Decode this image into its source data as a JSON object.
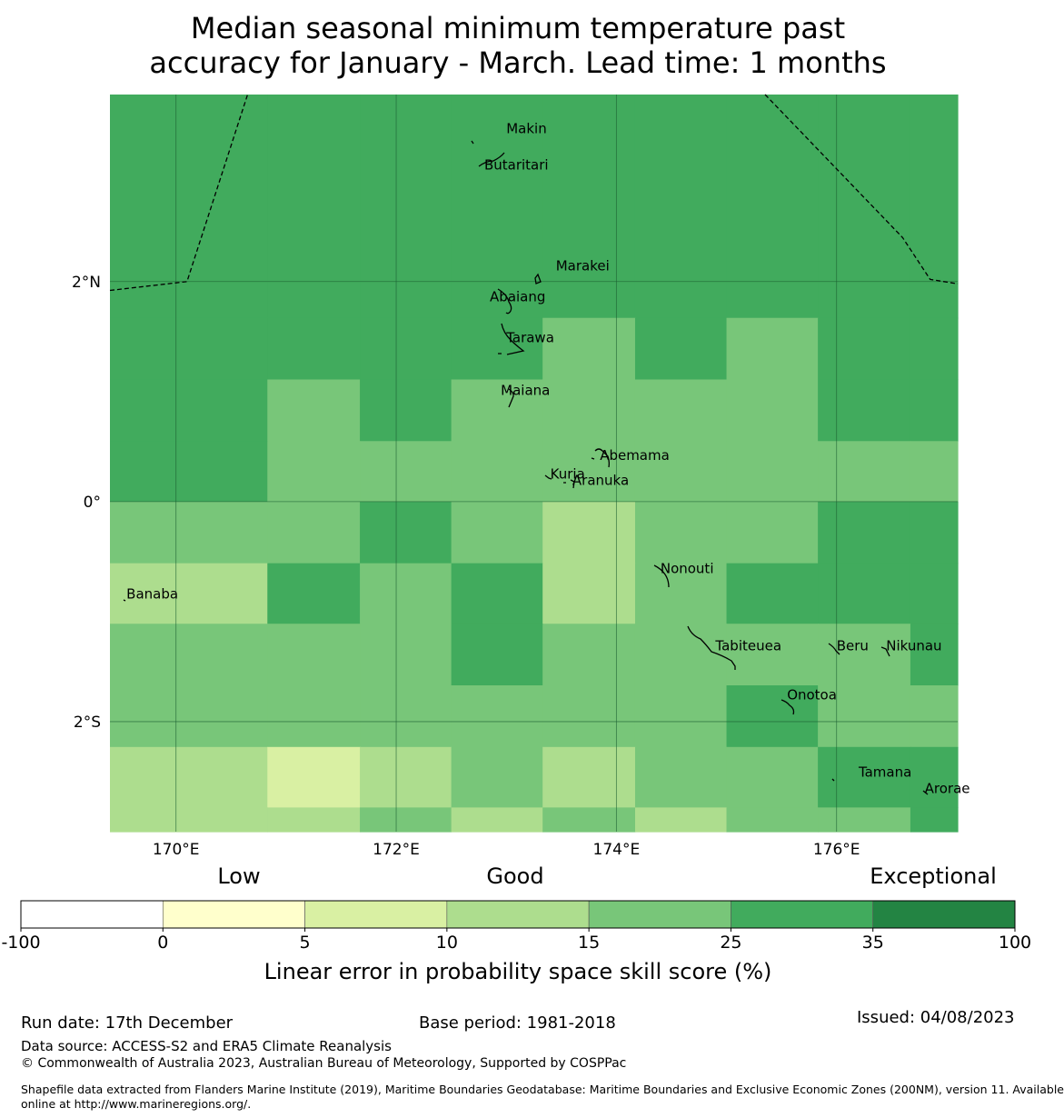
{
  "title": {
    "line1": "Median seasonal minimum temperature past",
    "line2": "accuracy for January - March. Lead time: 1 months"
  },
  "map": {
    "lon_range": [
      169.4,
      177.1
    ],
    "lat_range": [
      -3.0,
      3.7
    ],
    "lon_ticks": [
      {
        "value": 170,
        "label": "170°E"
      },
      {
        "value": 172,
        "label": "172°E"
      },
      {
        "value": 174,
        "label": "174°E"
      },
      {
        "value": 176,
        "label": "176°E"
      }
    ],
    "lat_ticks": [
      {
        "value": 2,
        "label": "2°N"
      },
      {
        "value": 0,
        "label": "0°"
      },
      {
        "value": -2,
        "label": "2°S"
      }
    ],
    "grid_lon_edges": [
      169.4,
      170.83,
      171.67,
      172.5,
      173.33,
      174.17,
      175.0,
      175.83,
      176.67,
      177.1
    ],
    "grid_lat_edges": [
      3.7,
      1.67,
      1.11,
      0.55,
      0.0,
      -0.56,
      -1.11,
      -1.67,
      -2.23,
      -2.78,
      -3.0
    ],
    "skill_cells": [
      [
        4,
        4,
        4,
        4,
        4,
        4,
        4,
        4,
        4
      ],
      [
        4,
        4,
        4,
        4,
        3,
        4,
        3,
        4,
        4
      ],
      [
        4,
        3,
        4,
        3,
        3,
        3,
        3,
        4,
        4
      ],
      [
        4,
        3,
        3,
        3,
        3,
        3,
        3,
        3,
        3
      ],
      [
        3,
        3,
        4,
        3,
        2,
        3,
        3,
        4,
        4
      ],
      [
        2,
        4,
        3,
        4,
        2,
        3,
        4,
        4,
        4
      ],
      [
        3,
        3,
        3,
        4,
        3,
        3,
        3,
        3,
        4
      ],
      [
        3,
        3,
        3,
        3,
        3,
        3,
        4,
        3,
        3
      ],
      [
        2,
        1,
        2,
        3,
        2,
        3,
        3,
        4,
        4
      ],
      [
        2,
        2,
        3,
        2,
        3,
        2,
        3,
        3,
        4
      ]
    ],
    "cell_colors": [
      "#ffffcc",
      "#d9f0a3",
      "#addd8e",
      "#78c679",
      "#41ab5d",
      "#238443"
    ],
    "eez_boundaries": [
      [
        [
          169.4,
          1.92
        ],
        [
          170.1,
          2.0
        ],
        [
          170.65,
          3.7
        ]
      ],
      [
        [
          175.35,
          3.7
        ],
        [
          176.6,
          2.4
        ],
        [
          176.85,
          2.02
        ],
        [
          177.1,
          1.98
        ]
      ]
    ],
    "islands": [
      {
        "name": "Makin",
        "lon": 173.0,
        "lat": 3.35
      },
      {
        "name": "Butaritari",
        "lon": 172.8,
        "lat": 3.02
      },
      {
        "name": "Marakei",
        "lon": 173.45,
        "lat": 2.1
      },
      {
        "name": "Abaiang",
        "lon": 172.85,
        "lat": 1.82
      },
      {
        "name": "Tarawa",
        "lon": 173.0,
        "lat": 1.45
      },
      {
        "name": "Maiana",
        "lon": 172.95,
        "lat": 0.97
      },
      {
        "name": "Abemama",
        "lon": 173.85,
        "lat": 0.38
      },
      {
        "name": "Kuria",
        "lon": 173.4,
        "lat": 0.21
      },
      {
        "name": "Aranuka",
        "lon": 173.6,
        "lat": 0.15
      },
      {
        "name": "Nonouti",
        "lon": 174.4,
        "lat": -0.65
      },
      {
        "name": "Banaba",
        "lon": 169.55,
        "lat": -0.88
      },
      {
        "name": "Tabiteuea",
        "lon": 174.9,
        "lat": -1.35
      },
      {
        "name": "Beru",
        "lon": 176.0,
        "lat": -1.35
      },
      {
        "name": "Nikunau",
        "lon": 176.45,
        "lat": -1.35
      },
      {
        "name": "Onotoa",
        "lon": 175.55,
        "lat": -1.8
      },
      {
        "name": "Tamana",
        "lon": 176.2,
        "lat": -2.5
      },
      {
        "name": "Arorae",
        "lon": 176.8,
        "lat": -2.65
      }
    ]
  },
  "legend": {
    "category_low": "Low",
    "category_good": "Good",
    "category_exceptional": "Exceptional",
    "bins": [
      {
        "from": -100,
        "to": 0,
        "color": "#ffffff"
      },
      {
        "from": 0,
        "to": 5,
        "color": "#ffffcc"
      },
      {
        "from": 5,
        "to": 10,
        "color": "#d9f0a3"
      },
      {
        "from": 10,
        "to": 15,
        "color": "#addd8e"
      },
      {
        "from": 15,
        "to": 25,
        "color": "#78c679"
      },
      {
        "from": 25,
        "to": 35,
        "color": "#41ab5d"
      },
      {
        "from": 35,
        "to": 100,
        "color": "#238443"
      }
    ],
    "tick_labels": [
      "-100",
      "0",
      "5",
      "10",
      "15",
      "25",
      "35",
      "100"
    ],
    "axis_label": "Linear error in probability space skill score (%)"
  },
  "footer": {
    "run_date": "Run date: 17th December",
    "base_period": "Base period: 1981-2018",
    "issued": "Issued: 04/08/2023",
    "data_source": "Data source: ACCESS-S2 and ERA5 Climate Reanalysis",
    "copyright": "© Commonwealth of Australia 2023, Australian Bureau of Meteorology, Supported by COSPPac",
    "shapefile_line1": "Shapefile data extracted from Flanders Marine Institute (2019), Maritime Boundaries Geodatabase: Maritime Boundaries and Exclusive Economic Zones (200NM), version 11. Available",
    "shapefile_line2": "online at http://www.marineregions.org/."
  }
}
